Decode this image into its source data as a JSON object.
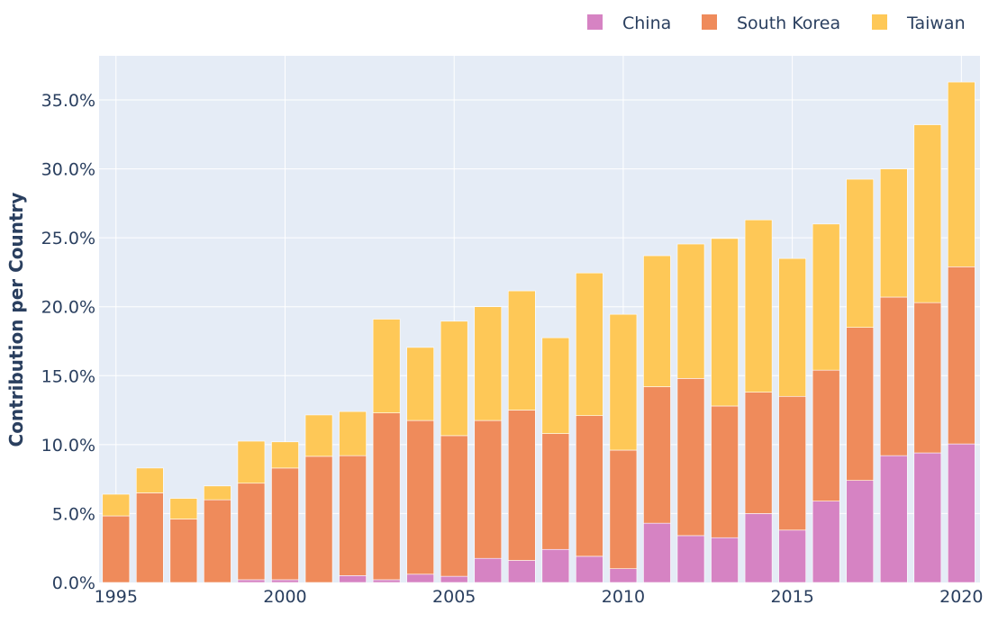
{
  "chart_data": {
    "type": "bar",
    "stacked": true,
    "xlabel": "",
    "ylabel": "Contribution per Country",
    "x": [
      1995,
      1996,
      1997,
      1998,
      1999,
      2000,
      2001,
      2002,
      2003,
      2004,
      2005,
      2006,
      2007,
      2008,
      2009,
      2010,
      2011,
      2012,
      2013,
      2014,
      2015,
      2016,
      2017,
      2018,
      2019,
      2020
    ],
    "xticks": [
      1995,
      2000,
      2005,
      2010,
      2015,
      2020
    ],
    "yticks": [
      0,
      5,
      10,
      15,
      20,
      25,
      30,
      35
    ],
    "ytick_labels": [
      "0.0%",
      "5.0%",
      "10.0%",
      "15.0%",
      "20.0%",
      "25.0%",
      "30.0%",
      "35.0%"
    ],
    "xlim": [
      1994.5,
      2020.55
    ],
    "ylim": [
      0,
      38.2
    ],
    "grid": true,
    "legend_position": "top-right",
    "series": [
      {
        "name": "China",
        "color": "#d683c3",
        "values": [
          0,
          0,
          0,
          0,
          0.2,
          0.2,
          0,
          0.5,
          0.2,
          0.6,
          0.45,
          1.75,
          1.6,
          2.4,
          1.9,
          1.0,
          4.3,
          3.4,
          3.25,
          5.0,
          3.8,
          5.9,
          7.4,
          9.2,
          9.4,
          10.05
        ]
      },
      {
        "name": "South Korea",
        "color": "#ef8b5b",
        "values": [
          4.83,
          6.5,
          4.6,
          6.0,
          7.0,
          8.1,
          9.15,
          8.7,
          12.1,
          11.15,
          10.2,
          10.0,
          10.9,
          8.4,
          10.2,
          8.6,
          9.9,
          11.4,
          9.55,
          8.8,
          9.7,
          9.5,
          11.1,
          11.5,
          10.9,
          12.85
        ]
      },
      {
        "name": "Taiwan",
        "color": "#fec857",
        "values": [
          1.57,
          1.8,
          1.5,
          1.0,
          3.05,
          1.9,
          3.0,
          3.2,
          6.8,
          5.3,
          8.3,
          8.25,
          8.65,
          6.95,
          10.35,
          9.85,
          9.5,
          9.75,
          12.15,
          12.5,
          10.0,
          10.6,
          10.75,
          9.3,
          12.9,
          13.4
        ]
      }
    ]
  },
  "colors": {
    "plot_bg": "#e5ecf6",
    "grid": "#ffffff",
    "text": "#2a3f5f"
  }
}
